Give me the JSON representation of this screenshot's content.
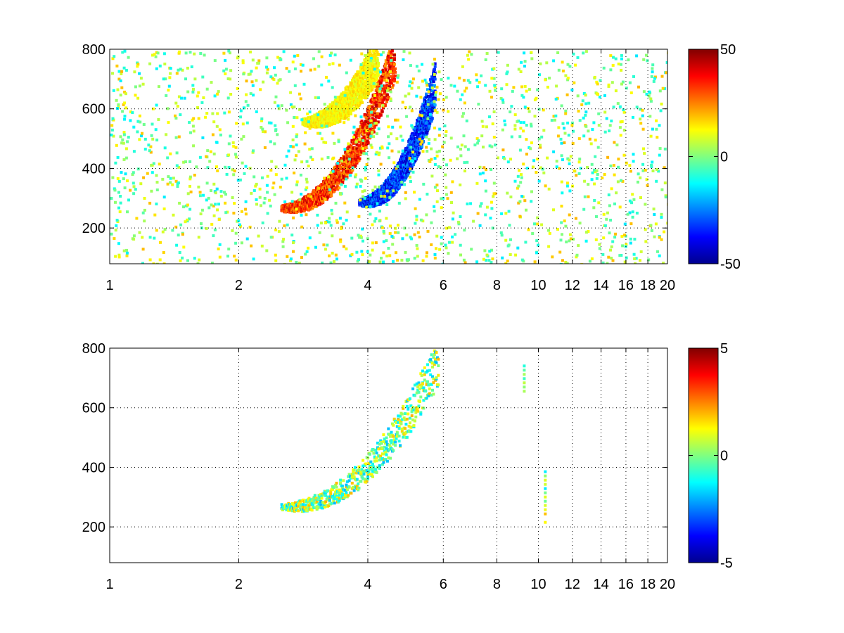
{
  "chart_data": [
    {
      "type": "heatmap",
      "title": "",
      "xlabel": "",
      "ylabel": "",
      "xlim": [
        1,
        20
      ],
      "ylim": [
        80,
        800
      ],
      "x_scale": "log",
      "x_ticks": [
        1,
        2,
        4,
        6,
        8,
        10,
        12,
        14,
        16,
        18,
        20
      ],
      "x_tick_labels": [
        "1",
        "2",
        "4",
        "6",
        "8",
        "10",
        "12",
        "14",
        "16",
        "18",
        "20"
      ],
      "y_ticks": [
        200,
        400,
        600,
        800
      ],
      "y_tick_labels": [
        "200",
        "400",
        "600",
        "800"
      ],
      "grid": "dotted",
      "colormap": "jet",
      "clim": [
        -50,
        50
      ],
      "colorbar_ticks": [
        -50,
        0,
        50
      ],
      "colorbar_tick_labels": [
        "-50",
        "0",
        "50"
      ],
      "features": [
        {
          "kind": "positive-ridge",
          "x_range": [
            2.5,
            4.6
          ],
          "y_start": 270,
          "y_end": 780,
          "peak_value": 45
        },
        {
          "kind": "negative-ridge",
          "x_range": [
            3.8,
            5.7
          ],
          "y_start": 290,
          "y_end": 680,
          "peak_value": -45
        },
        {
          "kind": "faint-upper-branch",
          "x_range": [
            2.8,
            4.2
          ],
          "y_start": 560,
          "y_end": 780,
          "peak_value": 18
        },
        {
          "kind": "scattered-noise",
          "x_range": [
            1,
            20
          ],
          "y_range": [
            80,
            800
          ],
          "value_range": [
            -15,
            20
          ]
        }
      ]
    },
    {
      "type": "heatmap",
      "title": "",
      "xlabel": "",
      "ylabel": "",
      "xlim": [
        1,
        20
      ],
      "ylim": [
        80,
        800
      ],
      "x_scale": "log",
      "x_ticks": [
        1,
        2,
        4,
        6,
        8,
        10,
        12,
        14,
        16,
        18,
        20
      ],
      "x_tick_labels": [
        "1",
        "2",
        "4",
        "6",
        "8",
        "10",
        "12",
        "14",
        "16",
        "18",
        "20"
      ],
      "y_ticks": [
        200,
        400,
        600,
        800
      ],
      "y_tick_labels": [
        "200",
        "400",
        "600",
        "800"
      ],
      "grid": "dotted",
      "colormap": "jet",
      "clim": [
        -5,
        5
      ],
      "colorbar_ticks": [
        -5,
        0,
        5
      ],
      "colorbar_tick_labels": [
        "-5",
        "0",
        "5"
      ],
      "features": [
        {
          "kind": "sparse-ridge",
          "x_range": [
            2.5,
            5.8
          ],
          "y_start": 270,
          "y_end": 760,
          "value_range": [
            -2,
            2
          ]
        },
        {
          "kind": "isolated-column",
          "x": 10.3,
          "y_range": [
            220,
            400
          ],
          "value_range": [
            -2,
            2
          ]
        },
        {
          "kind": "isolated-column",
          "x": 9.2,
          "y_range": [
            660,
            750
          ],
          "value_range": [
            -1,
            1
          ]
        }
      ]
    }
  ]
}
